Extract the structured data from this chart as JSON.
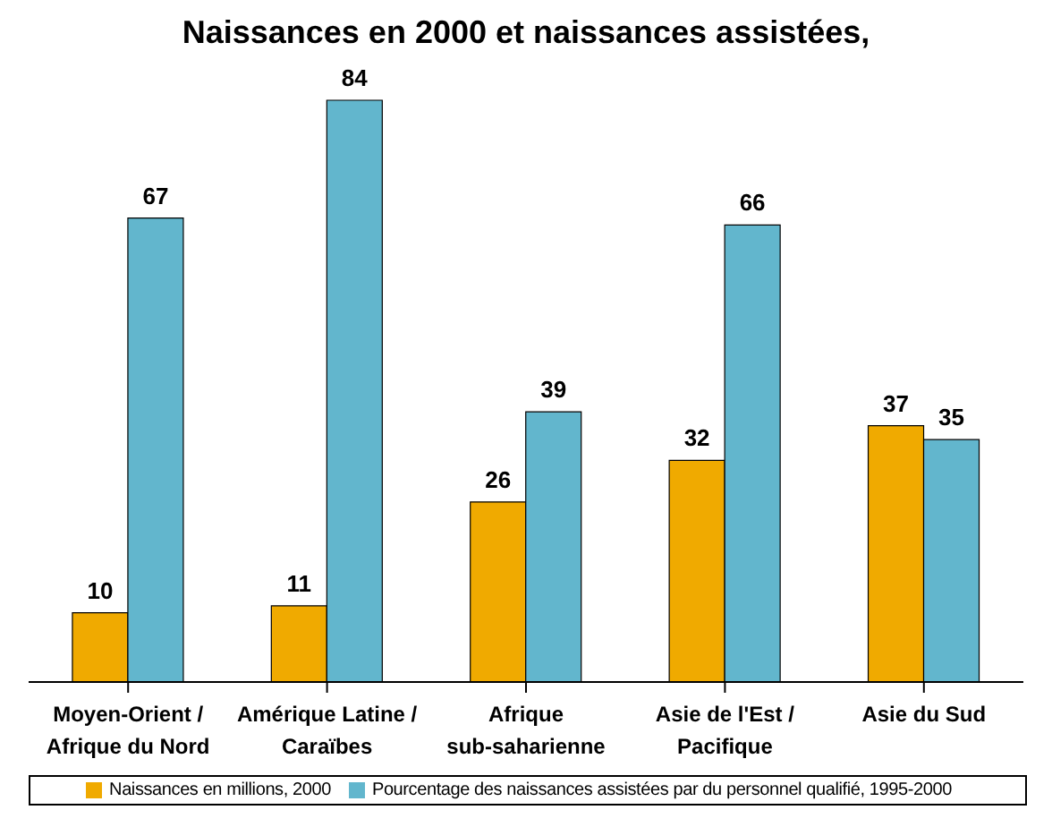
{
  "chart_data": {
    "type": "bar",
    "title": "Naissances en 2000 et naissances assistées,",
    "categories": [
      "Moyen-Orient / Afrique du Nord",
      "Amérique Latine / Caraïbes",
      "Afrique sub-saharienne",
      "Asie de l'Est / Pacifique",
      "Asie du Sud"
    ],
    "series": [
      {
        "name": "Naissances en millions, 2000",
        "color": "#f0aa00",
        "values": [
          10,
          11,
          26,
          32,
          37
        ]
      },
      {
        "name": "Pourcentage des naissances assistées par du personnel qualifié, 1995-2000",
        "color": "#62b6cd",
        "values": [
          67,
          84,
          39,
          66,
          35
        ]
      }
    ],
    "data_labels": true,
    "legend": "bottom",
    "grid": false
  }
}
